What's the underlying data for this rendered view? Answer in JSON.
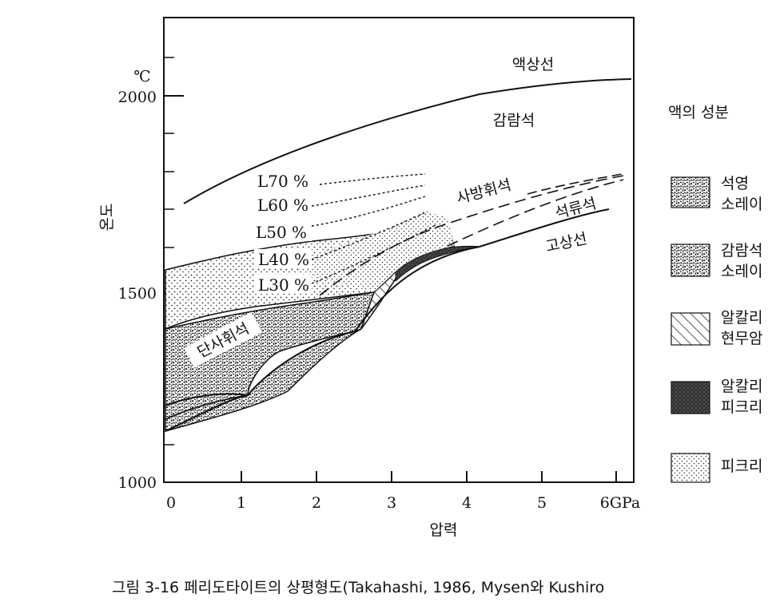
{
  "axes": {
    "x_ticks": [
      "0",
      "1",
      "2",
      "3",
      "4",
      "5",
      "6GPa"
    ],
    "y_ticks": [
      "1000",
      "1500",
      "2000"
    ],
    "y_unit": "℃",
    "x_label": "압력",
    "y_label": "온도"
  },
  "regions": {
    "liquidus": "액상선",
    "olivine": "감람석",
    "orthopyroxene": "사방휘석",
    "garnet": "석류석",
    "solidus": "고상선",
    "clinopyroxene": "단사휘석"
  },
  "melt_lines": [
    "L70 %",
    "L60 %",
    "L50 %",
    "L40 %",
    "L30 %"
  ],
  "legend": {
    "title": "액의 성분",
    "items": [
      {
        "line1": "석영",
        "line2": "소레이"
      },
      {
        "line1": "감람석",
        "line2": "소레이"
      },
      {
        "line1": "알칼리",
        "line2": "현무암"
      },
      {
        "line1": "알칼리",
        "line2": "피크리"
      },
      {
        "line1": "피크리",
        "line2": ""
      }
    ]
  },
  "caption": "그림 3-16  페리도타이트의  상평형도(Takahashi, 1986,   Mysen와  Kushiro"
}
